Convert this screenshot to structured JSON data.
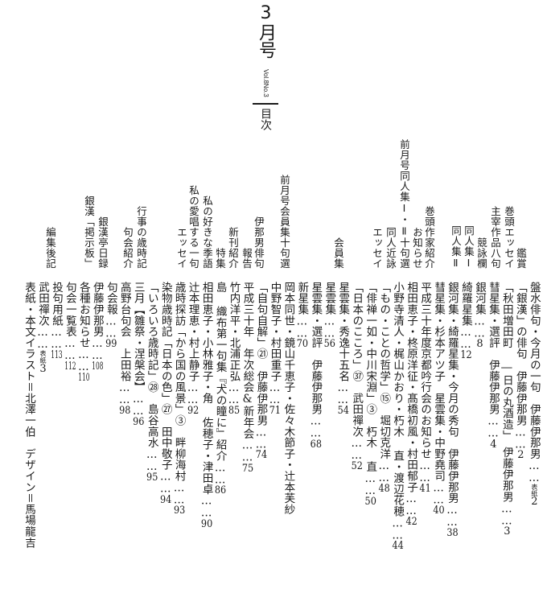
{
  "header": {
    "title": "3月号",
    "volume": "Vol.8No.3",
    "contents_label": "目次"
  },
  "sections": [
    "鑑賞",
    "巻頭エッセイ",
    "主宰作品八句",
    "競詠欄",
    "同人集Ⅰ",
    "同人集Ⅱ",
    "巻頭作家紹介",
    "お知らせ",
    "前月号同人集Ⅰ・Ⅱ十句選",
    "同人近詠",
    "エッセイ",
    "会員集",
    "前月号会員集十句選",
    "伊那男俳句",
    "報告",
    "新刊紹介",
    "特集",
    "私の好きな季語",
    "私の愛唱する一句",
    "エッセイ",
    "行事の歳時記",
    "句会紹介",
    "銀漢「掲示板」",
    "銀漢亭日録",
    "編集後記"
  ],
  "entries": [
    {
      "text": "盤水俳句・今月の一句　伊藤伊那男",
      "pre": "表紙",
      "page": "2"
    },
    {
      "text": "「銀漢」の俳句　伊藤伊那男",
      "page": "2"
    },
    {
      "text": "「秋田増田町 ―日の丸酒造」　伊藤伊那男",
      "page": "3"
    },
    {
      "text": "彗星集・選評　伊藤伊那男",
      "page": "4"
    },
    {
      "text": "銀河集",
      "page": "8"
    },
    {
      "text": "綺羅星集",
      "page": "12"
    },
    {
      "text": "銀河集・綺羅星集・今月の秀句　伊藤伊那男",
      "page": "38"
    },
    {
      "text": "彗星集・杉本アツ子　星雲集・中野堯司",
      "page": "40"
    },
    {
      "text": "平成三十年度京都吟行会のお知らせ",
      "page": "41"
    },
    {
      "text": "相田恵子・柊原洋征・髙橋初風・村田郁子",
      "page": "42"
    },
    {
      "text": "小野寺清人・梶山かおり・朽木 直・渡辺花穂",
      "page": "44"
    },
    {
      "text": "「もの・ことの哲学」⑮　堀切克洋",
      "page": "48"
    },
    {
      "text": "「俳禅一如・中川宋淵」③　朽木 直",
      "page": "50"
    },
    {
      "text": "「日本のこころ」㊲　武田禪次",
      "page": "52"
    },
    {
      "text": "星雲集・秀逸十五名",
      "page": "54"
    },
    {
      "text": "星雲集",
      "page": "56"
    },
    {
      "text": "星雲集・選評　伊藤伊那男",
      "page": "68"
    },
    {
      "text": "新星集",
      "page": "70"
    },
    {
      "text": "岡本同世・鏡山千恵子・佐々木節子・辻本芙紗"
    },
    {
      "text": "中野智子・村田重子",
      "page": "71"
    },
    {
      "text": "「自句自解」㉑　伊藤伊那男",
      "page": "74"
    },
    {
      "text": "平成三十年　年次総会&新年会",
      "page": "75"
    },
    {
      "text": "竹内洋平・北浦正弘",
      "page": "85"
    },
    {
      "text": "島 織布第一句集『犬の瞳に』紹介",
      "page": "86"
    },
    {
      "text": "相田恵子・小林雅子・角 佐穂子・津田卓",
      "page": "90"
    },
    {
      "text": "辻本理恵・村上静子",
      "page": "92"
    },
    {
      "text": "歳時探訪「から国の風景」③　畔柳海村",
      "page": "93"
    },
    {
      "text": "染物歳時記「日本の色」㉗　田中敬子",
      "page": "94"
    },
    {
      "text": "「いろいろ歳時記」㉘　島谷高水",
      "page": "95"
    },
    {
      "text": "三月【雛祭・涅槃会】",
      "page": "96"
    },
    {
      "text": "高野台句会　上田裕",
      "page": "98"
    },
    {
      "text": "句会報",
      "page": "99"
    },
    {
      "text": "伊藤伊那男",
      "page": "108"
    },
    {
      "text": "各種お知らせ",
      "page": "110"
    },
    {
      "text": "句会一覧表",
      "page": "112"
    },
    {
      "text": "投句用紙",
      "page": "113"
    },
    {
      "text": "武田禪次",
      "pre": "表紙",
      "page": "3"
    },
    {
      "text": "表紙・本文イラスト＝北澤一伯　デザイン＝馬場龍吉"
    }
  ]
}
